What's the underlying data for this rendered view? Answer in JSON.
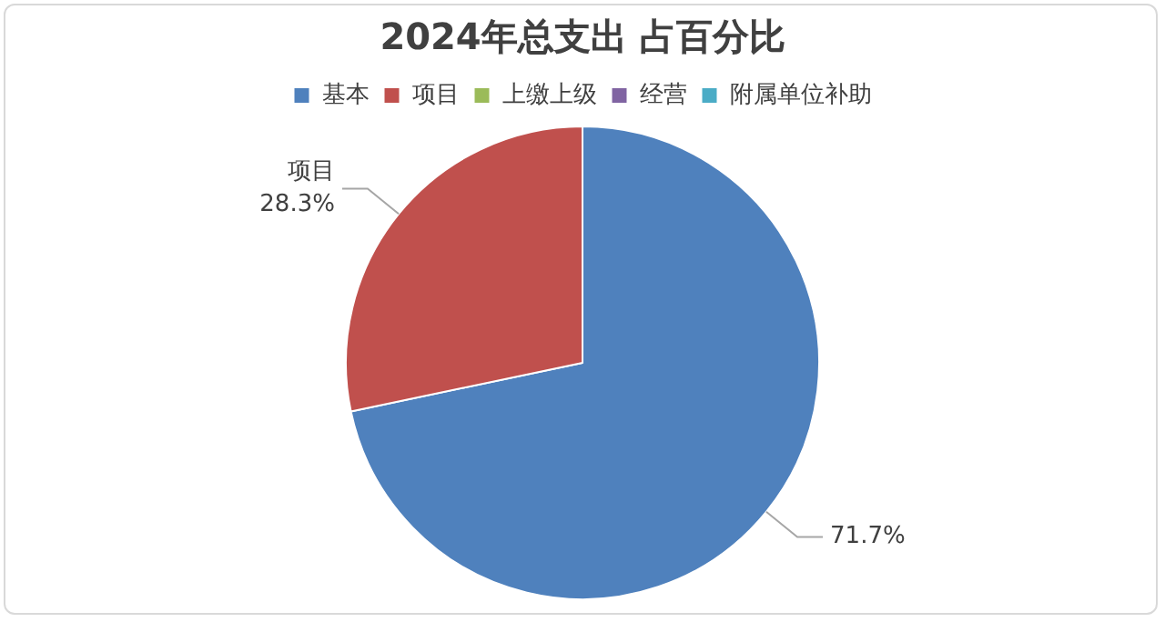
{
  "chart_data": {
    "type": "pie",
    "title": "2024年总支出 占百分比",
    "categories": [
      "基本",
      "项目",
      "上缴上级",
      "经营",
      "附属单位补助"
    ],
    "values": [
      71.7,
      28.3,
      0,
      0,
      0
    ],
    "colors": [
      "#4f81bd",
      "#c0504d",
      "#9bbb59",
      "#8064a2",
      "#4bacc6"
    ],
    "value_labels": [
      "71.7%",
      "项目\n28.3%",
      null,
      null,
      null
    ],
    "legend": "top"
  }
}
